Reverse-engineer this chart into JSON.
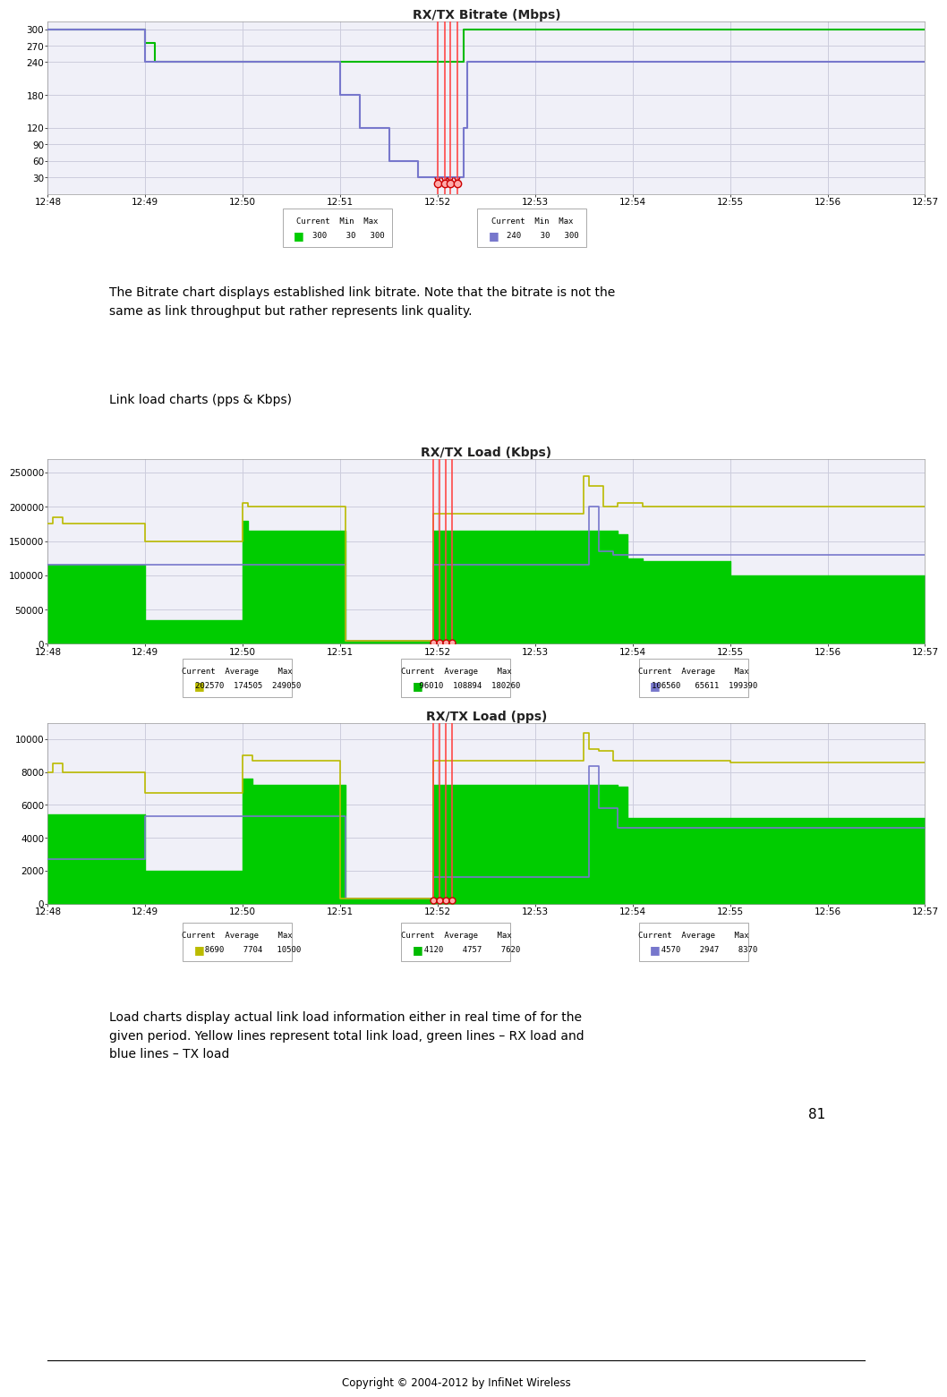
{
  "page_bg": "#ffffff",
  "page_number": "81",
  "footer_text": "Copyright © 2004-2012 by InfiNet Wireless",
  "text1": "The Bitrate chart displays established link bitrate. Note that the bitrate is not the\nsame as link throughput but rather represents link quality.",
  "text2": "Link load charts (pps & Kbps)",
  "text3": "Load charts display actual link load information either in real time of for the\ngiven period. Yellow lines represent total link load, green lines – RX load and\nblue lines – TX load",
  "chart1_title": "RX/TX Bitrate (Mbps)",
  "chart2_title": "RX/TX Load (Kbps)",
  "chart3_title": "RX/TX Load (pps)",
  "chart_bg": "#f0f0f8",
  "chart_grid": "#ccccdd",
  "xtick_labels": [
    "12:48",
    "12:49",
    "12:50",
    "12:51",
    "12:52",
    "12:53",
    "12:54",
    "12:55",
    "12:56",
    "12:57"
  ],
  "chart1_yticks": [
    30,
    60,
    90,
    120,
    180,
    240,
    270,
    300
  ],
  "chart1_ylim": [
    0,
    315
  ],
  "chart2_yticks": [
    0,
    50000,
    100000,
    150000,
    200000,
    250000
  ],
  "chart2_ylim": [
    0,
    270000
  ],
  "chart3_yticks": [
    0,
    2000,
    4000,
    6000,
    8000,
    10000
  ],
  "chart3_ylim": [
    0,
    11000
  ],
  "red_line_color": "#ff4444",
  "green_line_color": "#00bb00",
  "blue_line_color": "#7777cc",
  "yellow_line_color": "#bbbb00",
  "green_fill_color": "#00cc00",
  "marker_color": "#cc0000",
  "marker_face": "#ffaaaa"
}
